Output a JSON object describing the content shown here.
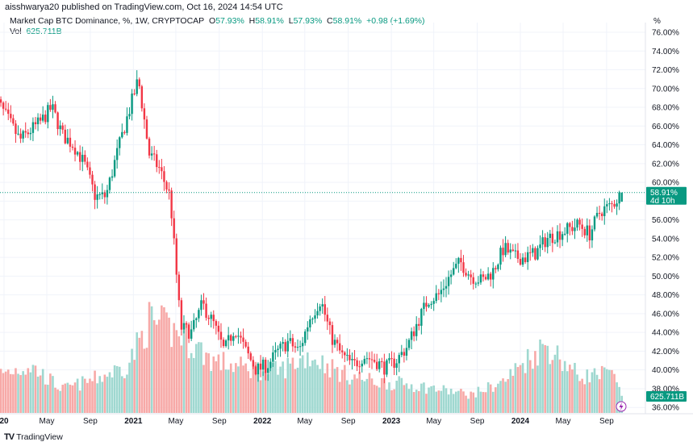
{
  "header": {
    "published": "aisshwarya20 published on TradingView.com, Oct 16, 2024 14:54 UTC",
    "symbol": "Market Cap BTC Dominance, %, 1W, CRYPTOCAP",
    "o_label": "O",
    "o": "57.93%",
    "h_label": "H",
    "h": "58.91%",
    "l_label": "L",
    "l": "57.93%",
    "c_label": "C",
    "c": "58.91%",
    "change": "+0.98 (+1.69%)",
    "vol_label": "Vol",
    "vol": "625.711B"
  },
  "axis_unit": "%",
  "price_tag": {
    "value": "58.91%",
    "countdown": "4d 10h"
  },
  "volume_tag": "625.711B",
  "footer": {
    "brand": "TradingView"
  },
  "colors": {
    "up": "#089981",
    "down": "#f23645",
    "vol_up": "#9fd8d0",
    "vol_down": "#f7a9a7",
    "grid": "#f0f3fa"
  },
  "chart_data": {
    "type": "candlestick",
    "interval": "1W",
    "y_ticks": [
      "76.00%",
      "74.00%",
      "72.00%",
      "70.00%",
      "68.00%",
      "66.00%",
      "64.00%",
      "62.00%",
      "60.00%",
      "58.00%",
      "56.00%",
      "54.00%",
      "52.00%",
      "50.00%",
      "48.00%",
      "46.00%",
      "44.00%",
      "42.00%",
      "40.00%",
      "38.00%",
      "36.00%"
    ],
    "ylim": [
      36,
      76
    ],
    "x_ticks": [
      {
        "label": "20",
        "date": "2020-01-01",
        "bold": true
      },
      {
        "label": "May",
        "date": "2020-05-01"
      },
      {
        "label": "Sep",
        "date": "2020-09-01"
      },
      {
        "label": "2021",
        "date": "2021-01-01",
        "bold": true
      },
      {
        "label": "May",
        "date": "2021-05-01"
      },
      {
        "label": "Sep",
        "date": "2021-09-01"
      },
      {
        "label": "2022",
        "date": "2022-01-01",
        "bold": true
      },
      {
        "label": "May",
        "date": "2022-05-01"
      },
      {
        "label": "Sep",
        "date": "2022-09-01"
      },
      {
        "label": "2023",
        "date": "2023-01-01",
        "bold": true
      },
      {
        "label": "May",
        "date": "2023-05-01"
      },
      {
        "label": "Sep",
        "date": "2023-09-01"
      },
      {
        "label": "2024",
        "date": "2024-01-01",
        "bold": true
      },
      {
        "label": "May",
        "date": "2024-05-01"
      },
      {
        "label": "Sep",
        "date": "2024-09-01"
      }
    ],
    "last": {
      "open": 57.93,
      "high": 58.91,
      "low": 57.93,
      "close": 58.91
    },
    "approx_monthly_close": [
      [
        "2019-12",
        68.5
      ],
      [
        "2020-01",
        66.5
      ],
      [
        "2020-02",
        64.5
      ],
      [
        "2020-03",
        65.5
      ],
      [
        "2020-04",
        66.5
      ],
      [
        "2020-05",
        68
      ],
      [
        "2020-06",
        65
      ],
      [
        "2020-07",
        64
      ],
      [
        "2020-08",
        62
      ],
      [
        "2020-09",
        58.5
      ],
      [
        "2020-10",
        58.5
      ],
      [
        "2020-11",
        63
      ],
      [
        "2020-12",
        67
      ],
      [
        "2021-01",
        71
      ],
      [
        "2021-02",
        63
      ],
      [
        "2021-03",
        61.5
      ],
      [
        "2021-04",
        58.5
      ],
      [
        "2021-05",
        44.5
      ],
      [
        "2021-06",
        44
      ],
      [
        "2021-07",
        47
      ],
      [
        "2021-08",
        45
      ],
      [
        "2021-09",
        42
      ],
      [
        "2021-10",
        44.5
      ],
      [
        "2021-11",
        42
      ],
      [
        "2021-12",
        40
      ],
      [
        "2022-01",
        40.5
      ],
      [
        "2022-02",
        42
      ],
      [
        "2022-03",
        43
      ],
      [
        "2022-04",
        42
      ],
      [
        "2022-05",
        45.5
      ],
      [
        "2022-06",
        47.5
      ],
      [
        "2022-07",
        43.5
      ],
      [
        "2022-08",
        41.5
      ],
      [
        "2022-09",
        40.5
      ],
      [
        "2022-10",
        41.5
      ],
      [
        "2022-11",
        41
      ],
      [
        "2022-12",
        40.2
      ],
      [
        "2023-01",
        41
      ],
      [
        "2023-02",
        42.5
      ],
      [
        "2023-03",
        45
      ],
      [
        "2023-04",
        47.5
      ],
      [
        "2023-05",
        48
      ],
      [
        "2023-06",
        50
      ],
      [
        "2023-07",
        51.5
      ],
      [
        "2023-08",
        50
      ],
      [
        "2023-09",
        49.5
      ],
      [
        "2023-10",
        50.5
      ],
      [
        "2023-11",
        53
      ],
      [
        "2023-12",
        52
      ],
      [
        "2024-01",
        52
      ],
      [
        "2024-02",
        52.5
      ],
      [
        "2024-03",
        54
      ],
      [
        "2024-04",
        54.5
      ],
      [
        "2024-05",
        55
      ],
      [
        "2024-06",
        55.5
      ],
      [
        "2024-07",
        54.5
      ],
      [
        "2024-08",
        57
      ],
      [
        "2024-09",
        57.5
      ],
      [
        "2024-10",
        58.91
      ]
    ],
    "approx_monthly_volume_B": [
      [
        "2019-12",
        1500
      ],
      [
        "2020-03",
        1800
      ],
      [
        "2020-06",
        900
      ],
      [
        "2020-09",
        1300
      ],
      [
        "2020-12",
        1800
      ],
      [
        "2021-02",
        3500
      ],
      [
        "2021-05",
        3000
      ],
      [
        "2021-08",
        2000
      ],
      [
        "2021-11",
        1700
      ],
      [
        "2022-02",
        1600
      ],
      [
        "2022-05",
        2200
      ],
      [
        "2022-08",
        1500
      ],
      [
        "2022-11",
        1200
      ],
      [
        "2023-02",
        1100
      ],
      [
        "2023-05",
        900
      ],
      [
        "2023-08",
        700
      ],
      [
        "2023-11",
        1200
      ],
      [
        "2024-01",
        2000
      ],
      [
        "2024-03",
        2600
      ],
      [
        "2024-06",
        1400
      ],
      [
        "2024-09",
        1500
      ],
      [
        "2024-10",
        625.711
      ]
    ]
  }
}
